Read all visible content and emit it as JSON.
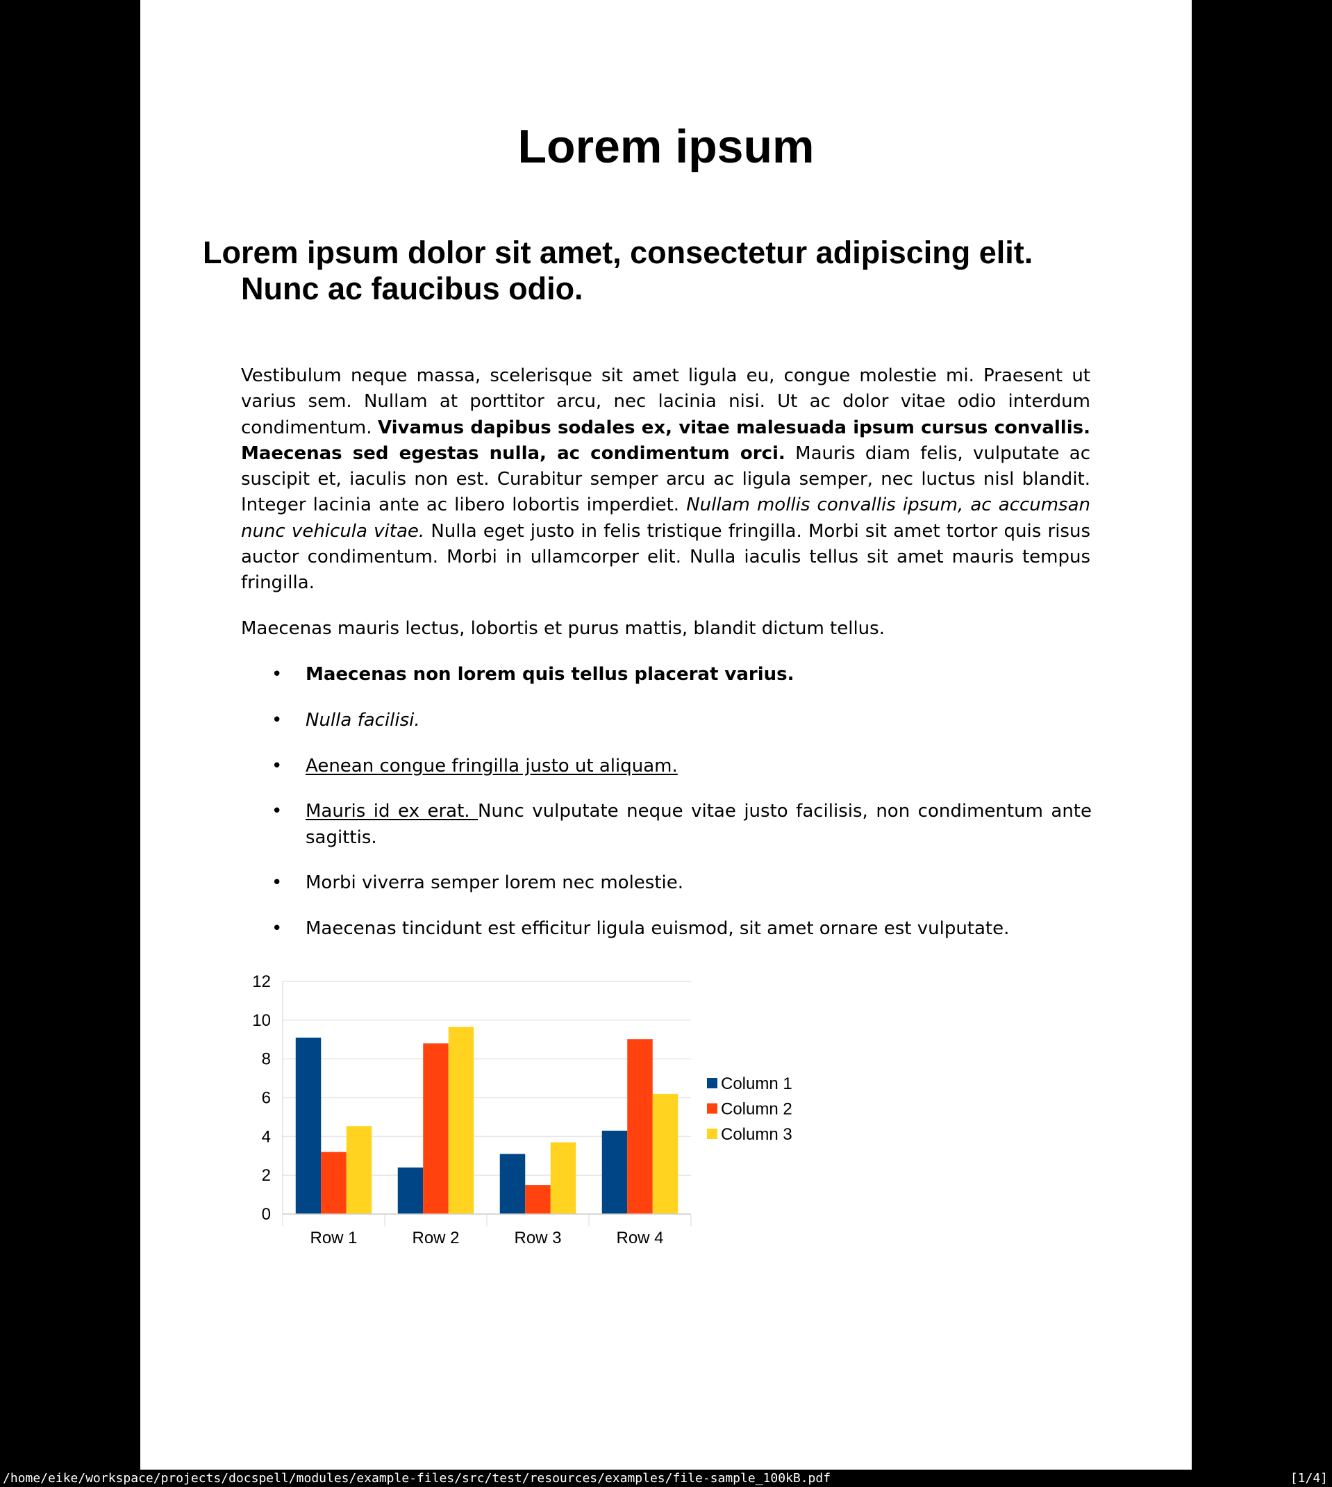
{
  "document": {
    "title": "Lorem ipsum",
    "heading": "Lorem ipsum dolor sit amet, consectetur adipiscing elit. Nunc ac faucibus odio.",
    "paragraph1": {
      "part1": "Vestibulum neque massa, scelerisque sit amet ligula eu, congue molestie mi. Praesent ut varius sem. Nullam at porttitor arcu, nec lacinia nisi. Ut ac dolor vitae odio interdum condimentum. ",
      "bold": "Vivamus dapibus sodales ex, vitae malesuada ipsum cursus convallis. Maecenas sed egestas nulla, ac condimentum orci.",
      "part2": " Mauris diam felis, vulputate ac suscipit et, iaculis non est. Curabitur semper arcu ac ligula semper, nec luctus nisl blandit. Integer lacinia ante ac libero lobortis imperdiet. ",
      "italic": "Nullam mollis convallis ipsum, ac accumsan nunc vehicula vitae.",
      "part3": " Nulla eget justo in felis tristique fringilla. Morbi sit amet tortor quis risus auctor condimentum. Morbi in ullamcorper elit. Nulla iaculis tellus sit amet mauris tempus fringilla."
    },
    "paragraph2": "Maecenas mauris lectus, lobortis et purus mattis, blandit dictum tellus.",
    "bullet": "•",
    "list": {
      "item1": "Maecenas non lorem quis tellus placerat varius.",
      "item2": "Nulla facilisi.",
      "item3": "Aenean congue fringilla justo ut aliquam. ",
      "item4_underlined": "Mauris id ex erat. ",
      "item4_rest": "Nunc vulputate neque vitae justo facilisis, non condimentum ante sagittis.",
      "item5": "Morbi viverra semper lorem nec molestie.",
      "item6": "Maecenas tincidunt est efficitur ligula euismod, sit amet ornare est vulputate."
    }
  },
  "chart_data": {
    "type": "bar",
    "categories": [
      "Row 1",
      "Row 2",
      "Row 3",
      "Row 4"
    ],
    "series": [
      {
        "name": "Column 1",
        "color": "#004586",
        "values": [
          9.1,
          2.4,
          3.1,
          4.3
        ]
      },
      {
        "name": "Column 2",
        "color": "#ff420e",
        "values": [
          3.2,
          8.8,
          1.5,
          9.02
        ]
      },
      {
        "name": "Column 3",
        "color": "#ffd320",
        "values": [
          4.54,
          9.65,
          3.7,
          6.2
        ]
      }
    ],
    "ylim": [
      0,
      12
    ],
    "yticks": [
      "0",
      "2",
      "4",
      "6",
      "8",
      "10",
      "12"
    ],
    "grid": true,
    "legend": "right"
  },
  "status_bar": {
    "path": "/home/eike/workspace/projects/docspell/modules/example-files/src/test/resources/examples/file-sample_100kB.pdf",
    "page": "[1/4]"
  }
}
